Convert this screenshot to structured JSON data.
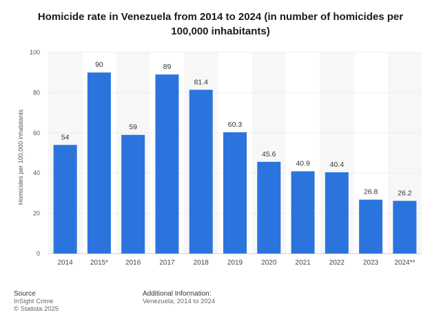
{
  "chart_data": {
    "type": "bar",
    "title": "Homicide rate in Venezuela from 2014 to 2024 (in number of homicides per 100,000 inhabitants)",
    "xlabel": "",
    "ylabel": "Homicides per 100,000 inhabitants",
    "categories": [
      "2014",
      "2015*",
      "2016",
      "2017",
      "2018",
      "2019",
      "2020",
      "2021",
      "2022",
      "2023",
      "2024**"
    ],
    "values": [
      54,
      90,
      59,
      89,
      81.4,
      60.3,
      45.6,
      40.9,
      40.4,
      26.8,
      26.2
    ],
    "value_labels": [
      "54",
      "90",
      "59",
      "89",
      "81.4",
      "60.3",
      "45.6",
      "40.9",
      "40.4",
      "26.8",
      "26.2"
    ],
    "ylim": [
      0,
      100
    ],
    "yticks": [
      "0",
      "20",
      "40",
      "60",
      "80",
      "100"
    ],
    "grid": true,
    "bar_color": "#2b74de"
  },
  "footer": {
    "source_heading": "Source",
    "source_lines": [
      "InSight Crime",
      "© Statista 2025"
    ],
    "info_heading": "Additional Information:",
    "info_lines": [
      "Venezuela; 2014 to 2024"
    ]
  }
}
